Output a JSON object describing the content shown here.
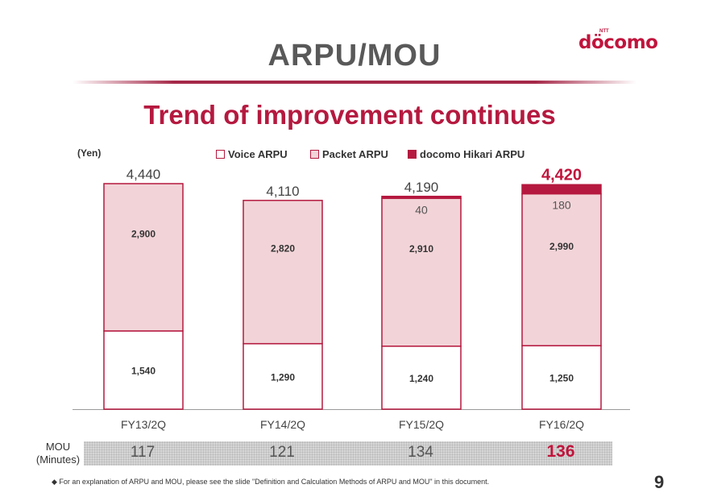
{
  "slide": {
    "title": "ARPU/MOU",
    "subtitle": "Trend of improvement continues",
    "logo": "döcomo",
    "logo_sup": "NTT",
    "page_number": "9",
    "footnote": "◆  For an explanation of ARPU and MOU, please see the slide \"Definition and Calculation Methods of ARPU and MOU\" in this document."
  },
  "colors": {
    "voice": "#ffffff",
    "packet": "#f2d4d8",
    "hikari": "#b5193f",
    "border": "#b5193f",
    "accent": "#c0143c"
  },
  "chart_data": {
    "type": "bar",
    "stacked": true,
    "ylabel": "(Yen)",
    "categories": [
      "FY13/2Q",
      "FY14/2Q",
      "FY15/2Q",
      "FY16/2Q"
    ],
    "series": [
      {
        "name": "Voice ARPU",
        "values": [
          1540,
          1290,
          1240,
          1250
        ]
      },
      {
        "name": "Packet ARPU",
        "values": [
          2900,
          2820,
          2910,
          2990
        ]
      },
      {
        "name": "docomo Hikari ARPU",
        "values": [
          0,
          0,
          40,
          180
        ]
      }
    ],
    "totals": [
      4440,
      4110,
      4190,
      4420
    ],
    "labels": {
      "voice": [
        "1,540",
        "1,290",
        "1,240",
        "1,250"
      ],
      "packet": [
        "2,900",
        "2,820",
        "2,910",
        "2,990"
      ],
      "hikari": [
        "",
        "",
        "40",
        "180"
      ],
      "totals": [
        "4,440",
        "4,110",
        "4,190",
        "4,420"
      ]
    },
    "legend_position": "top",
    "ylim": [
      0,
      4440
    ],
    "grid": false
  },
  "mou": {
    "label": "MOU\n(Minutes)",
    "values": [
      "117",
      "121",
      "134",
      "136"
    ]
  }
}
